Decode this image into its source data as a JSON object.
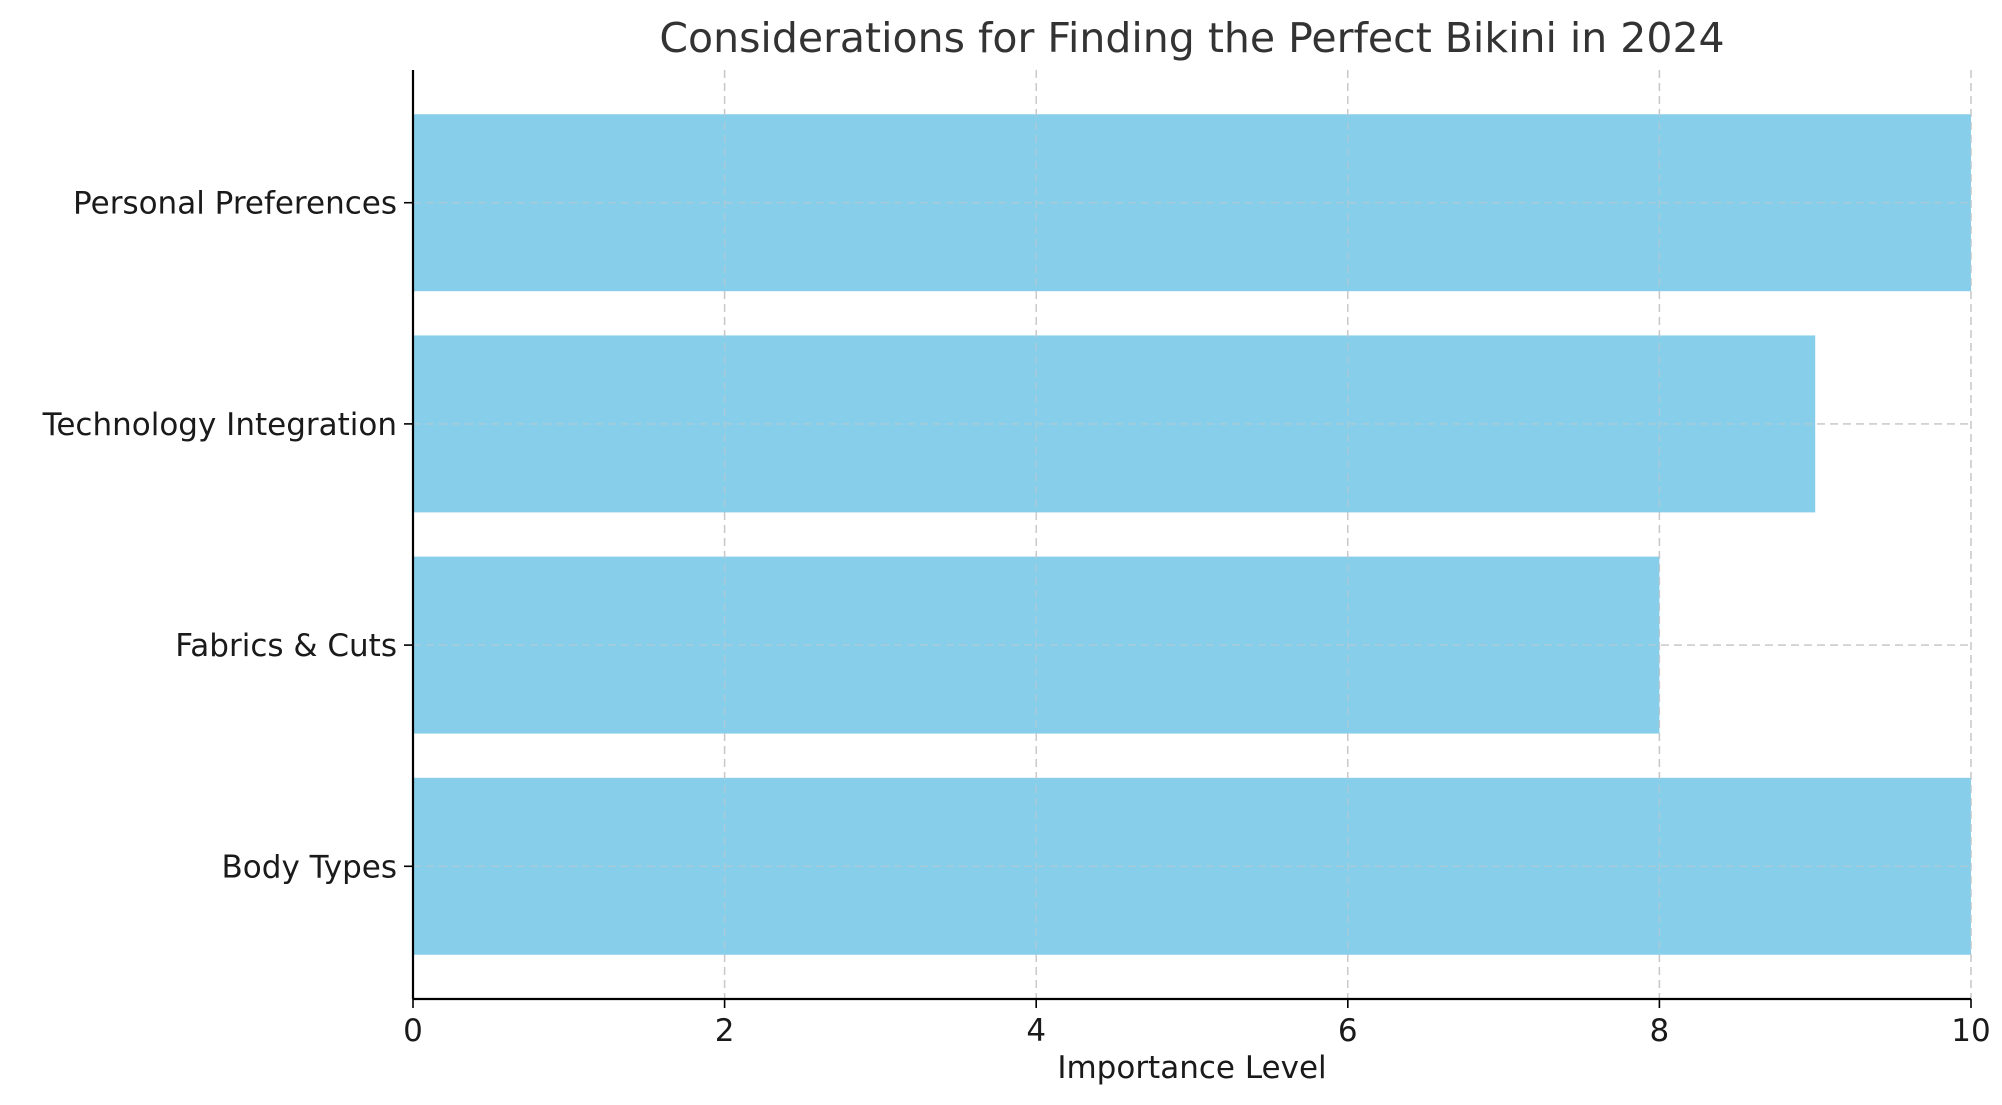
{
  "chart_data": {
    "type": "bar",
    "orientation": "horizontal",
    "title": "Considerations for Finding the Perfect Bikini in 2024",
    "xlabel": "Importance Level",
    "ylabel": "",
    "categories": [
      "Body Types",
      "Fabrics & Cuts",
      "Technology Integration",
      "Personal Preferences"
    ],
    "values": [
      10,
      8,
      9,
      10
    ],
    "xlim": [
      0,
      10
    ],
    "xticks": [
      0,
      2,
      4,
      6,
      8,
      10
    ],
    "grid": true,
    "bar_color": "#87CEEB"
  }
}
